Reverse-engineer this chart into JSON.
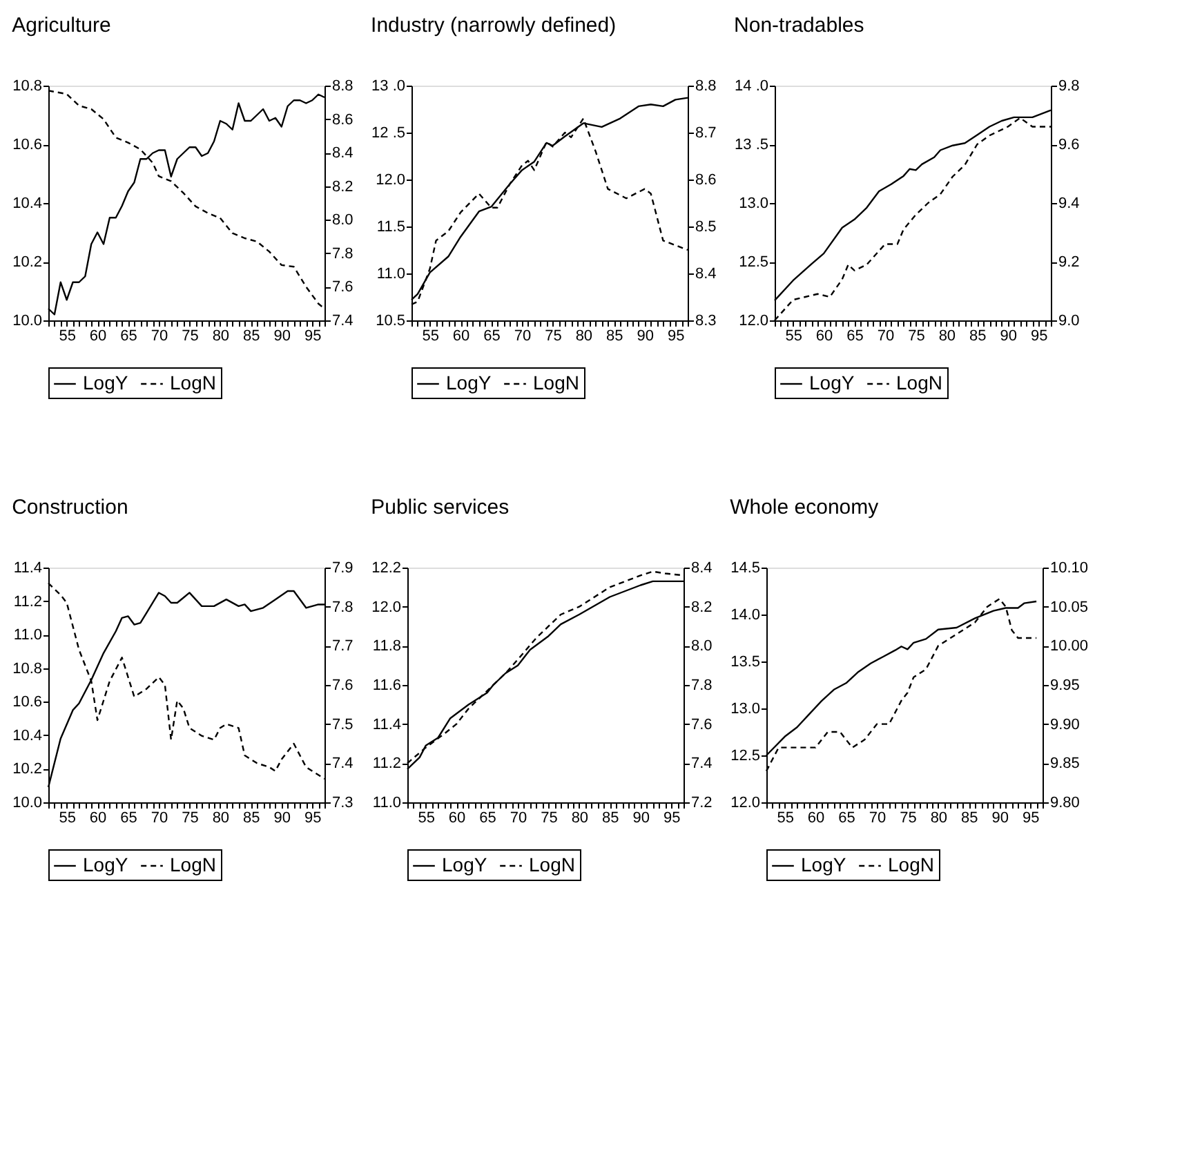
{
  "chart_data": [
    {
      "type": "line",
      "title": "Agriculture",
      "legend": "bottom",
      "grid": false,
      "xlim": [
        52,
        97
      ],
      "xticks": [
        {
          "value": 52,
          "label": null
        },
        {
          "value": 53,
          "label": null
        },
        {
          "value": 54,
          "label": null
        },
        55,
        {
          "value": 56,
          "label": null
        },
        {
          "value": 57,
          "label": null
        },
        {
          "value": 58,
          "label": null
        },
        {
          "value": 59,
          "label": null
        },
        60,
        {
          "value": 61,
          "label": null
        },
        {
          "value": 62,
          "label": null
        },
        {
          "value": 63,
          "label": null
        },
        {
          "value": 64,
          "label": null
        },
        65,
        {
          "value": 66,
          "label": null
        },
        {
          "value": 67,
          "label": null
        },
        {
          "value": 68,
          "label": null
        },
        {
          "value": 69,
          "label": null
        },
        70,
        {
          "value": 71,
          "label": null
        },
        {
          "value": 72,
          "label": null
        },
        {
          "value": 73,
          "label": null
        },
        {
          "value": 74,
          "label": null
        },
        75,
        {
          "value": 76,
          "label": null
        },
        {
          "value": 77,
          "label": null
        },
        {
          "value": 78,
          "label": null
        },
        {
          "value": 79,
          "label": null
        },
        80,
        {
          "value": 81,
          "label": null
        },
        {
          "value": 82,
          "label": null
        },
        {
          "value": 83,
          "label": null
        },
        {
          "value": 84,
          "label": null
        },
        85,
        {
          "value": 86,
          "label": null
        },
        {
          "value": 87,
          "label": null
        },
        {
          "value": 88,
          "label": null
        },
        {
          "value": 89,
          "label": null
        },
        90,
        {
          "value": 91,
          "label": null
        },
        {
          "value": 92,
          "label": null
        },
        {
          "value": 93,
          "label": null
        },
        {
          "value": 94,
          "label": null
        },
        95,
        {
          "value": 96,
          "label": null
        },
        {
          "value": 97,
          "label": null
        }
      ],
      "ylim": [
        10.0,
        10.8
      ],
      "yticks": [
        {
          "value": 10,
          "label": "10.0"
        },
        10.2,
        10.4,
        10.6,
        10.8
      ],
      "y2lim": [
        7.4,
        8.8
      ],
      "y2ticks": [
        7.4,
        7.6,
        7.8,
        {
          "value": 8,
          "label": "8.0"
        },
        8.2,
        8.4,
        8.6,
        8.8
      ],
      "series": [
        {
          "name": "LogY",
          "color": "#000000",
          "line_style": "solid",
          "x": [
            52,
            53,
            54,
            55,
            56,
            57,
            58,
            59,
            60,
            61,
            62,
            63,
            64,
            65,
            66,
            67,
            68,
            69,
            70,
            71,
            72,
            73,
            74,
            75,
            76,
            77,
            78,
            79,
            80,
            81,
            82,
            83,
            84,
            85,
            86,
            87,
            88,
            89,
            90,
            91,
            92,
            93,
            94,
            95,
            96,
            97
          ],
          "values": [
            10.04,
            10.02,
            10.13,
            10.07,
            10.13,
            10.13,
            10.15,
            10.26,
            10.3,
            10.26,
            10.35,
            10.35,
            10.39,
            10.44,
            10.47,
            10.55,
            10.55,
            10.57,
            10.58,
            10.58,
            10.49,
            10.55,
            10.57,
            10.59,
            10.59,
            10.56,
            10.57,
            10.61,
            10.68,
            10.67,
            10.65,
            10.74,
            10.68,
            10.68,
            10.7,
            10.72,
            10.68,
            10.69,
            10.66,
            10.73,
            10.75,
            10.75,
            10.74,
            10.75,
            10.77,
            10.76
          ]
        },
        {
          "name": "LogN",
          "color": "#000000",
          "line_style": "dashed",
          "axis": "y2",
          "x": [
            52,
            55,
            57,
            59,
            61,
            63,
            65,
            67,
            69,
            70,
            72,
            74,
            76,
            78,
            80,
            82,
            84,
            86,
            88,
            90,
            92,
            94,
            96,
            97
          ],
          "values": [
            8.77,
            8.75,
            8.68,
            8.66,
            8.6,
            8.49,
            8.46,
            8.42,
            8.34,
            8.26,
            8.23,
            8.16,
            8.08,
            8.04,
            8.01,
            7.92,
            7.89,
            7.87,
            7.81,
            7.73,
            7.72,
            7.6,
            7.5,
            7.47
          ]
        }
      ]
    },
    {
      "type": "line",
      "title": "Industry (narrowly defined)",
      "legend": "bottom",
      "grid": false,
      "xlim": [
        52,
        97
      ],
      "xticks": [
        {
          "value": 52,
          "label": null
        },
        {
          "value": 53,
          "label": null
        },
        {
          "value": 54,
          "label": null
        },
        55,
        {
          "value": 56,
          "label": null
        },
        {
          "value": 57,
          "label": null
        },
        {
          "value": 58,
          "label": null
        },
        {
          "value": 59,
          "label": null
        },
        60,
        {
          "value": 61,
          "label": null
        },
        {
          "value": 62,
          "label": null
        },
        {
          "value": 63,
          "label": null
        },
        {
          "value": 64,
          "label": null
        },
        65,
        {
          "value": 66,
          "label": null
        },
        {
          "value": 67,
          "label": null
        },
        {
          "value": 68,
          "label": null
        },
        {
          "value": 69,
          "label": null
        },
        70,
        {
          "value": 71,
          "label": null
        },
        {
          "value": 72,
          "label": null
        },
        {
          "value": 73,
          "label": null
        },
        {
          "value": 74,
          "label": null
        },
        75,
        {
          "value": 76,
          "label": null
        },
        {
          "value": 77,
          "label": null
        },
        {
          "value": 78,
          "label": null
        },
        {
          "value": 79,
          "label": null
        },
        80,
        {
          "value": 81,
          "label": null
        },
        {
          "value": 82,
          "label": null
        },
        {
          "value": 83,
          "label": null
        },
        {
          "value": 84,
          "label": null
        },
        85,
        {
          "value": 86,
          "label": null
        },
        {
          "value": 87,
          "label": null
        },
        {
          "value": 88,
          "label": null
        },
        {
          "value": 89,
          "label": null
        },
        90,
        {
          "value": 91,
          "label": null
        },
        {
          "value": 92,
          "label": null
        },
        {
          "value": 93,
          "label": null
        },
        {
          "value": 94,
          "label": null
        },
        95,
        {
          "value": 96,
          "label": null
        },
        {
          "value": 97,
          "label": null
        }
      ],
      "ylim": [
        10.5,
        13.0
      ],
      "yticks": [
        10.5,
        {
          "value": 11,
          "label": "11.0"
        },
        11.5,
        {
          "value": 12,
          "label": "12.0"
        },
        {
          "value": 12.5,
          "label": "12 .5"
        },
        {
          "value": 13,
          "label": "13 .0"
        }
      ],
      "y2lim": [
        8.3,
        8.8
      ],
      "y2ticks": [
        8.3,
        8.4,
        8.5,
        8.6,
        8.7,
        8.8
      ],
      "series": [
        {
          "name": "LogY",
          "color": "#000000",
          "line_style": "solid",
          "x": [
            52,
            53,
            55,
            58,
            60,
            63,
            65,
            68,
            70,
            72,
            74,
            75,
            77,
            80,
            83,
            86,
            89,
            91,
            93,
            95,
            97
          ],
          "values": [
            10.72,
            10.78,
            11.01,
            11.18,
            11.39,
            11.66,
            11.71,
            11.95,
            12.1,
            12.19,
            12.39,
            12.36,
            12.46,
            12.6,
            12.56,
            12.65,
            12.78,
            12.8,
            12.78,
            12.85,
            12.87
          ]
        },
        {
          "name": "LogN",
          "color": "#000000",
          "line_style": "dashed",
          "axis": "y2",
          "x": [
            52,
            53,
            55,
            56,
            58,
            60,
            63,
            65,
            66,
            68,
            70,
            71,
            72,
            74,
            75,
            77,
            78,
            80,
            82,
            84,
            87,
            90,
            91,
            93,
            97
          ],
          "values": [
            8.334,
            8.34,
            8.41,
            8.47,
            8.49,
            8.53,
            8.57,
            8.54,
            8.54,
            8.59,
            8.63,
            8.64,
            8.62,
            8.68,
            8.67,
            8.7,
            8.69,
            8.73,
            8.66,
            8.58,
            8.56,
            8.58,
            8.57,
            8.47,
            8.45
          ]
        }
      ]
    },
    {
      "type": "line",
      "title": "Non-tradables",
      "legend": "bottom",
      "grid": false,
      "xlim": [
        52,
        97
      ],
      "xticks": [
        {
          "value": 52,
          "label": null
        },
        {
          "value": 53,
          "label": null
        },
        {
          "value": 54,
          "label": null
        },
        55,
        {
          "value": 56,
          "label": null
        },
        {
          "value": 57,
          "label": null
        },
        {
          "value": 58,
          "label": null
        },
        {
          "value": 59,
          "label": null
        },
        60,
        {
          "value": 61,
          "label": null
        },
        {
          "value": 62,
          "label": null
        },
        {
          "value": 63,
          "label": null
        },
        {
          "value": 64,
          "label": null
        },
        65,
        {
          "value": 66,
          "label": null
        },
        {
          "value": 67,
          "label": null
        },
        {
          "value": 68,
          "label": null
        },
        {
          "value": 69,
          "label": null
        },
        70,
        {
          "value": 71,
          "label": null
        },
        {
          "value": 72,
          "label": null
        },
        {
          "value": 73,
          "label": null
        },
        {
          "value": 74,
          "label": null
        },
        75,
        {
          "value": 76,
          "label": null
        },
        {
          "value": 77,
          "label": null
        },
        {
          "value": 78,
          "label": null
        },
        {
          "value": 79,
          "label": null
        },
        80,
        {
          "value": 81,
          "label": null
        },
        {
          "value": 82,
          "label": null
        },
        {
          "value": 83,
          "label": null
        },
        {
          "value": 84,
          "label": null
        },
        85,
        {
          "value": 86,
          "label": null
        },
        {
          "value": 87,
          "label": null
        },
        {
          "value": 88,
          "label": null
        },
        {
          "value": 89,
          "label": null
        },
        90,
        {
          "value": 91,
          "label": null
        },
        {
          "value": 92,
          "label": null
        },
        {
          "value": 93,
          "label": null
        },
        {
          "value": 94,
          "label": null
        },
        95,
        {
          "value": 96,
          "label": null
        },
        {
          "value": 97,
          "label": null
        }
      ],
      "ylim": [
        12.0,
        14.0
      ],
      "yticks": [
        {
          "value": 12,
          "label": "12.0"
        },
        12.5,
        {
          "value": 13,
          "label": "13.0"
        },
        {
          "value": 13.5,
          "label": "13 .5"
        },
        {
          "value": 14,
          "label": "14 .0"
        }
      ],
      "y2lim": [
        9.0,
        9.8
      ],
      "y2ticks": [
        {
          "value": 9,
          "label": "9.0"
        },
        9.2,
        9.4,
        9.6,
        9.8
      ],
      "series": [
        {
          "name": "LogY",
          "color": "#000000",
          "line_style": "solid",
          "x": [
            52,
            55,
            58,
            60,
            63,
            65,
            67,
            69,
            71,
            73,
            74,
            75,
            76,
            78,
            79,
            81,
            83,
            85,
            87,
            89,
            91,
            94,
            97
          ],
          "values": [
            12.17,
            12.34,
            12.48,
            12.57,
            12.79,
            12.86,
            12.96,
            13.1,
            13.16,
            13.23,
            13.29,
            13.28,
            13.33,
            13.39,
            13.45,
            13.49,
            13.51,
            13.58,
            13.65,
            13.7,
            13.73,
            13.73,
            13.79
          ]
        },
        {
          "name": "LogN",
          "color": "#000000",
          "line_style": "dashed",
          "axis": "y2",
          "x": [
            52,
            55,
            57,
            59,
            61,
            63,
            64,
            65,
            67,
            70,
            72,
            73,
            75,
            77,
            79,
            81,
            83,
            85,
            87,
            90,
            92,
            94,
            95,
            97
          ],
          "values": [
            9.0,
            9.07,
            9.08,
            9.09,
            9.08,
            9.14,
            9.19,
            9.17,
            9.19,
            9.26,
            9.26,
            9.31,
            9.36,
            9.4,
            9.43,
            9.49,
            9.53,
            9.6,
            9.63,
            9.66,
            9.69,
            9.66,
            9.66,
            9.66
          ]
        }
      ]
    },
    {
      "type": "line",
      "title": "Construction",
      "legend": "bottom",
      "grid": false,
      "xlim": [
        52,
        97
      ],
      "xticks": [
        {
          "value": 52,
          "label": null
        },
        {
          "value": 53,
          "label": null
        },
        {
          "value": 54,
          "label": null
        },
        55,
        {
          "value": 56,
          "label": null
        },
        {
          "value": 57,
          "label": null
        },
        {
          "value": 58,
          "label": null
        },
        {
          "value": 59,
          "label": null
        },
        60,
        {
          "value": 61,
          "label": null
        },
        {
          "value": 62,
          "label": null
        },
        {
          "value": 63,
          "label": null
        },
        {
          "value": 64,
          "label": null
        },
        65,
        {
          "value": 66,
          "label": null
        },
        {
          "value": 67,
          "label": null
        },
        {
          "value": 68,
          "label": null
        },
        {
          "value": 69,
          "label": null
        },
        70,
        {
          "value": 71,
          "label": null
        },
        {
          "value": 72,
          "label": null
        },
        {
          "value": 73,
          "label": null
        },
        {
          "value": 74,
          "label": null
        },
        75,
        {
          "value": 76,
          "label": null
        },
        {
          "value": 77,
          "label": null
        },
        {
          "value": 78,
          "label": null
        },
        {
          "value": 79,
          "label": null
        },
        80,
        {
          "value": 81,
          "label": null
        },
        {
          "value": 82,
          "label": null
        },
        {
          "value": 83,
          "label": null
        },
        {
          "value": 84,
          "label": null
        },
        85,
        {
          "value": 86,
          "label": null
        },
        {
          "value": 87,
          "label": null
        },
        {
          "value": 88,
          "label": null
        },
        {
          "value": 89,
          "label": null
        },
        90,
        {
          "value": 91,
          "label": null
        },
        {
          "value": 92,
          "label": null
        },
        {
          "value": 93,
          "label": null
        },
        {
          "value": 94,
          "label": null
        },
        95,
        {
          "value": 96,
          "label": null
        },
        {
          "value": 97,
          "label": null
        }
      ],
      "ylim": [
        10.0,
        11.4
      ],
      "yticks": [
        {
          "value": 10,
          "label": "10.0"
        },
        10.2,
        10.4,
        10.6,
        10.8,
        {
          "value": 11,
          "label": "11.0"
        },
        11.2,
        11.4
      ],
      "y2lim": [
        7.3,
        7.9
      ],
      "y2ticks": [
        7.3,
        7.4,
        7.5,
        7.6,
        7.7,
        7.8,
        7.9
      ],
      "series": [
        {
          "name": "LogY",
          "color": "#000000",
          "line_style": "solid",
          "x": [
            52,
            54,
            56,
            57,
            59,
            61,
            63,
            64,
            65,
            66,
            67,
            68,
            70,
            71,
            72,
            73,
            74,
            75,
            77,
            79,
            81,
            83,
            84,
            85,
            87,
            89,
            91,
            92,
            94,
            96,
            97
          ],
          "values": [
            10.09,
            10.38,
            10.55,
            10.59,
            10.73,
            10.89,
            11.02,
            11.1,
            11.11,
            11.06,
            11.07,
            11.13,
            11.25,
            11.23,
            11.19,
            11.19,
            11.22,
            11.25,
            11.17,
            11.17,
            11.21,
            11.17,
            11.18,
            11.14,
            11.16,
            11.21,
            11.26,
            11.26,
            11.16,
            11.18,
            11.18
          ]
        },
        {
          "name": "LogN",
          "color": "#000000",
          "line_style": "dashed",
          "axis": "y2",
          "x": [
            52,
            54,
            55,
            57,
            59,
            60,
            62,
            64,
            66,
            68,
            70,
            71,
            72,
            73,
            74,
            75,
            77,
            79,
            80,
            81,
            83,
            84,
            86,
            88,
            89,
            90,
            92,
            94,
            96,
            97
          ],
          "values": [
            7.86,
            7.83,
            7.81,
            7.69,
            7.61,
            7.51,
            7.61,
            7.67,
            7.57,
            7.59,
            7.62,
            7.6,
            7.46,
            7.56,
            7.54,
            7.49,
            7.47,
            7.46,
            7.49,
            7.5,
            7.49,
            7.42,
            7.4,
            7.39,
            7.38,
            7.41,
            7.45,
            7.39,
            7.37,
            7.36
          ]
        }
      ]
    },
    {
      "type": "line",
      "title": "Public services",
      "legend": "bottom",
      "grid": false,
      "xlim": [
        52,
        97
      ],
      "xticks": [
        {
          "value": 52,
          "label": null
        },
        {
          "value": 53,
          "label": null
        },
        {
          "value": 54,
          "label": null
        },
        55,
        {
          "value": 56,
          "label": null
        },
        {
          "value": 57,
          "label": null
        },
        {
          "value": 58,
          "label": null
        },
        {
          "value": 59,
          "label": null
        },
        60,
        {
          "value": 61,
          "label": null
        },
        {
          "value": 62,
          "label": null
        },
        {
          "value": 63,
          "label": null
        },
        {
          "value": 64,
          "label": null
        },
        65,
        {
          "value": 66,
          "label": null
        },
        {
          "value": 67,
          "label": null
        },
        {
          "value": 68,
          "label": null
        },
        {
          "value": 69,
          "label": null
        },
        70,
        {
          "value": 71,
          "label": null
        },
        {
          "value": 72,
          "label": null
        },
        {
          "value": 73,
          "label": null
        },
        {
          "value": 74,
          "label": null
        },
        75,
        {
          "value": 76,
          "label": null
        },
        {
          "value": 77,
          "label": null
        },
        {
          "value": 78,
          "label": null
        },
        {
          "value": 79,
          "label": null
        },
        80,
        {
          "value": 81,
          "label": null
        },
        {
          "value": 82,
          "label": null
        },
        {
          "value": 83,
          "label": null
        },
        {
          "value": 84,
          "label": null
        },
        85,
        {
          "value": 86,
          "label": null
        },
        {
          "value": 87,
          "label": null
        },
        {
          "value": 88,
          "label": null
        },
        {
          "value": 89,
          "label": null
        },
        90,
        {
          "value": 91,
          "label": null
        },
        {
          "value": 92,
          "label": null
        },
        {
          "value": 93,
          "label": null
        },
        {
          "value": 94,
          "label": null
        },
        95,
        {
          "value": 96,
          "label": null
        },
        {
          "value": 97,
          "label": null
        }
      ],
      "ylim": [
        11.0,
        12.2
      ],
      "yticks": [
        {
          "value": 11,
          "label": "11.0"
        },
        11.2,
        11.4,
        11.6,
        11.8,
        {
          "value": 12,
          "label": "12.0"
        },
        12.2
      ],
      "y2lim": [
        7.2,
        8.4
      ],
      "y2ticks": [
        7.2,
        7.4,
        7.6,
        7.8,
        {
          "value": 8,
          "label": "8.0"
        },
        8.2,
        8.4
      ],
      "series": [
        {
          "name": "LogY",
          "color": "#000000",
          "line_style": "solid",
          "x": [
            52,
            54,
            55,
            57,
            59,
            62,
            65,
            66,
            68,
            70,
            72,
            75,
            77,
            80,
            85,
            90,
            92,
            97
          ],
          "values": [
            11.17,
            11.23,
            11.29,
            11.33,
            11.43,
            11.5,
            11.56,
            11.6,
            11.66,
            11.7,
            11.78,
            11.85,
            11.91,
            11.96,
            12.05,
            12.11,
            12.13,
            12.13
          ]
        },
        {
          "name": "LogN",
          "color": "#000000",
          "line_style": "dashed",
          "axis": "y2",
          "x": [
            52,
            55,
            58,
            60,
            62,
            65,
            68,
            70,
            73,
            77,
            80,
            85,
            90,
            92,
            94,
            97
          ],
          "values": [
            7.4,
            7.48,
            7.55,
            7.6,
            7.68,
            7.77,
            7.86,
            7.93,
            8.04,
            8.16,
            8.2,
            8.3,
            8.36,
            8.38,
            8.37,
            8.36
          ]
        }
      ]
    },
    {
      "type": "line",
      "title": "Whole economy",
      "legend": "bottom",
      "grid": false,
      "xlim": [
        52,
        97
      ],
      "xticks": [
        {
          "value": 52,
          "label": null
        },
        {
          "value": 53,
          "label": null
        },
        {
          "value": 54,
          "label": null
        },
        55,
        {
          "value": 56,
          "label": null
        },
        {
          "value": 57,
          "label": null
        },
        {
          "value": 58,
          "label": null
        },
        {
          "value": 59,
          "label": null
        },
        60,
        {
          "value": 61,
          "label": null
        },
        {
          "value": 62,
          "label": null
        },
        {
          "value": 63,
          "label": null
        },
        {
          "value": 64,
          "label": null
        },
        65,
        {
          "value": 66,
          "label": null
        },
        {
          "value": 67,
          "label": null
        },
        {
          "value": 68,
          "label": null
        },
        {
          "value": 69,
          "label": null
        },
        70,
        {
          "value": 71,
          "label": null
        },
        {
          "value": 72,
          "label": null
        },
        {
          "value": 73,
          "label": null
        },
        {
          "value": 74,
          "label": null
        },
        75,
        {
          "value": 76,
          "label": null
        },
        {
          "value": 77,
          "label": null
        },
        {
          "value": 78,
          "label": null
        },
        {
          "value": 79,
          "label": null
        },
        80,
        {
          "value": 81,
          "label": null
        },
        {
          "value": 82,
          "label": null
        },
        {
          "value": 83,
          "label": null
        },
        {
          "value": 84,
          "label": null
        },
        85,
        {
          "value": 86,
          "label": null
        },
        {
          "value": 87,
          "label": null
        },
        {
          "value": 88,
          "label": null
        },
        {
          "value": 89,
          "label": null
        },
        90,
        {
          "value": 91,
          "label": null
        },
        {
          "value": 92,
          "label": null
        },
        {
          "value": 93,
          "label": null
        },
        {
          "value": 94,
          "label": null
        },
        95,
        {
          "value": 96,
          "label": null
        },
        {
          "value": 97,
          "label": null
        }
      ],
      "ylim": [
        12.0,
        14.5
      ],
      "yticks": [
        {
          "value": 12,
          "label": "12.0"
        },
        12.5,
        {
          "value": 13,
          "label": "13.0"
        },
        13.5,
        {
          "value": 14,
          "label": "14.0"
        },
        14.5
      ],
      "y2lim": [
        9.8,
        10.1
      ],
      "y2ticks": [
        {
          "value": 9.8,
          "label": "9.80"
        },
        9.85,
        {
          "value": 9.9,
          "label": "9.90"
        },
        9.95,
        {
          "value": 10,
          "label": "10.00"
        },
        10.05,
        {
          "value": 10.1,
          "label": "10.10"
        }
      ],
      "series": [
        {
          "name": "LogY",
          "color": "#000000",
          "line_style": "solid",
          "x": [
            52,
            55,
            57,
            59,
            61,
            63,
            65,
            67,
            69,
            71,
            73,
            74,
            75,
            76,
            78,
            80,
            83,
            86,
            89,
            91,
            93,
            94,
            96
          ],
          "values": [
            12.5,
            12.7,
            12.8,
            12.94,
            13.08,
            13.2,
            13.27,
            13.39,
            13.48,
            13.55,
            13.62,
            13.66,
            13.63,
            13.7,
            13.74,
            13.84,
            13.86,
            13.96,
            14.04,
            14.07,
            14.07,
            14.12,
            14.14
          ]
        },
        {
          "name": "LogN",
          "color": "#000000",
          "line_style": "dashed",
          "axis": "y2",
          "x": [
            52,
            54,
            56,
            58,
            60,
            62,
            64,
            66,
            68,
            70,
            72,
            74,
            75,
            76,
            78,
            80,
            82,
            84,
            86,
            88,
            90,
            91,
            92,
            93,
            96
          ],
          "values": [
            9.84,
            9.87,
            9.87,
            9.87,
            9.87,
            9.89,
            9.89,
            9.87,
            9.88,
            9.9,
            9.9,
            9.93,
            9.94,
            9.96,
            9.97,
            10.0,
            10.01,
            10.02,
            10.03,
            10.05,
            10.06,
            10.05,
            10.02,
            10.01,
            10.01
          ]
        }
      ]
    }
  ]
}
